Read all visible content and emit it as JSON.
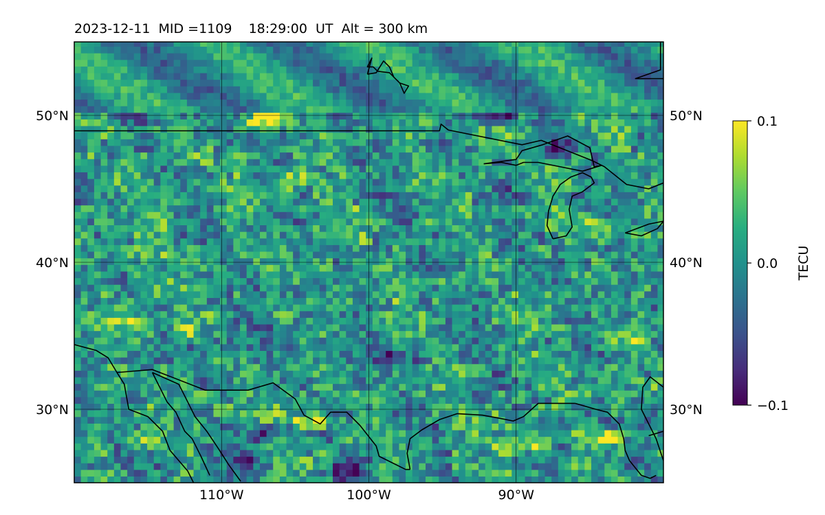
{
  "chart_data": {
    "type": "heatmap",
    "title": "2023-12-11  MID =1109    18:29:00  UT  Alt = 300 km",
    "map_extent": {
      "lon": [
        -120,
        -80
      ],
      "lat": [
        25,
        55
      ]
    },
    "x_ticks": [
      {
        "lon": -110,
        "label": "110°W"
      },
      {
        "lon": -100,
        "label": "100°W"
      },
      {
        "lon": -90,
        "label": "90°W"
      }
    ],
    "y_ticks": [
      {
        "lat": 50,
        "label": "50°N"
      },
      {
        "lat": 40,
        "label": "40°N"
      },
      {
        "lat": 30,
        "label": "30°N"
      }
    ],
    "grid": true,
    "colormap": "viridis",
    "colorbar": {
      "label": "TECU",
      "range": [
        -0.1,
        0.1
      ],
      "ticks": [
        {
          "value": 0.1,
          "label": "0.1"
        },
        {
          "value": 0.0,
          "label": "0.0"
        },
        {
          "value": -0.1,
          "label": "−0.1"
        }
      ],
      "placement": "right"
    },
    "hotspots_tecu": [
      {
        "lon": -107.5,
        "lat": 49.6,
        "value": 0.1
      },
      {
        "lon": -105.8,
        "lat": 50.1,
        "value": 0.08
      },
      {
        "lon": -104.8,
        "lat": 45.7,
        "value": 0.09
      },
      {
        "lon": -116.5,
        "lat": 36.0,
        "value": 0.1
      },
      {
        "lon": -112.5,
        "lat": 35.3,
        "value": 0.09
      },
      {
        "lon": -106.5,
        "lat": 29.7,
        "value": 0.1
      },
      {
        "lon": -104.0,
        "lat": 29.3,
        "value": 0.09
      },
      {
        "lon": -115.0,
        "lat": 28.0,
        "value": 0.09
      },
      {
        "lon": -89.0,
        "lat": 27.5,
        "value": 0.08
      },
      {
        "lon": -84.0,
        "lat": 28.0,
        "value": 0.09
      },
      {
        "lon": -85.0,
        "lat": 43.0,
        "value": 0.08
      },
      {
        "lon": -82.5,
        "lat": 34.5,
        "value": 0.07
      },
      {
        "lon": -91.0,
        "lat": 50.0,
        "value": -0.1
      },
      {
        "lon": -101.5,
        "lat": 25.8,
        "value": -0.1
      },
      {
        "lon": -107.0,
        "lat": 28.5,
        "value": -0.09
      },
      {
        "lon": -98.0,
        "lat": 33.5,
        "value": -0.08
      },
      {
        "lon": -108.5,
        "lat": 26.5,
        "value": -0.08
      },
      {
        "lon": -87.0,
        "lat": 48.0,
        "value": -0.08
      },
      {
        "lon": -90.5,
        "lat": 44.5,
        "value": -0.07
      }
    ],
    "coastlines_lonlat": [
      [
        [
          -120,
          48.95
        ],
        [
          -95.2,
          48.95
        ],
        [
          -95.1,
          49.4
        ],
        [
          -94.6,
          49.0
        ],
        [
          -89.6,
          48.0
        ],
        [
          -88.3,
          48.3
        ],
        [
          -84.8,
          46.9
        ],
        [
          -84.0,
          46.5
        ],
        [
          -83.5,
          46.1
        ],
        [
          -82.5,
          45.3
        ],
        [
          -81.0,
          45.0
        ],
        [
          -80,
          45.4
        ]
      ],
      [
        [
          -100.1,
          52.8
        ],
        [
          -99.5,
          52.9
        ],
        [
          -99.0,
          53.7
        ],
        [
          -98.6,
          53.3
        ],
        [
          -98.3,
          52.6
        ],
        [
          -97.9,
          52.2
        ],
        [
          -97.6,
          51.5
        ],
        [
          -97.3,
          52.0
        ],
        [
          -97.9,
          52.2
        ],
        [
          -98.6,
          52.9
        ],
        [
          -99.4,
          53.0
        ],
        [
          -99.7,
          53.3
        ],
        [
          -100.1,
          53.3
        ],
        [
          -99.8,
          53.9
        ],
        [
          -100.1,
          52.8
        ]
      ],
      [
        [
          -92.2,
          46.7
        ],
        [
          -90.0,
          47.0
        ],
        [
          -89.6,
          47.6
        ],
        [
          -88.2,
          48.0
        ],
        [
          -86.5,
          48.6
        ],
        [
          -85.0,
          47.8
        ],
        [
          -84.7,
          46.5
        ],
        [
          -84.2,
          46.6
        ],
        [
          -85.5,
          46.2
        ],
        [
          -87.0,
          46.5
        ],
        [
          -88.5,
          46.8
        ],
        [
          -89.5,
          46.8
        ],
        [
          -90.0,
          46.6
        ],
        [
          -91.0,
          46.8
        ],
        [
          -92.2,
          46.7
        ]
      ],
      [
        [
          -87.5,
          41.6
        ],
        [
          -87.9,
          42.5
        ],
        [
          -87.8,
          43.5
        ],
        [
          -87.5,
          44.5
        ],
        [
          -87.0,
          45.3
        ],
        [
          -86.3,
          45.8
        ],
        [
          -85.5,
          46.1
        ],
        [
          -84.9,
          45.8
        ],
        [
          -84.7,
          45.4
        ],
        [
          -85.5,
          44.8
        ],
        [
          -86.2,
          44.5
        ],
        [
          -86.4,
          43.6
        ],
        [
          -86.2,
          42.4
        ],
        [
          -86.6,
          41.8
        ],
        [
          -87.5,
          41.6
        ]
      ],
      [
        [
          -82.6,
          42.0
        ],
        [
          -81.0,
          42.6
        ],
        [
          -80.0,
          42.8
        ],
        [
          -80.4,
          42.3
        ],
        [
          -81.5,
          41.8
        ],
        [
          -82.6,
          42.0
        ]
      ],
      [
        [
          -80.0,
          31.5
        ],
        [
          -80.9,
          32.2
        ],
        [
          -81.4,
          31.5
        ],
        [
          -81.5,
          30.0
        ],
        [
          -81.0,
          29.0
        ],
        [
          -80.5,
          28.0
        ],
        [
          -80.0,
          26.5
        ]
      ],
      [
        [
          -80.0,
          28.5
        ],
        [
          -81.0,
          28.2
        ]
      ],
      [
        [
          -86.0,
          30.4
        ],
        [
          -84.6,
          30.0
        ],
        [
          -83.8,
          29.8
        ],
        [
          -83.0,
          29.0
        ],
        [
          -82.7,
          28.0
        ],
        [
          -82.6,
          27.2
        ],
        [
          -82.3,
          26.5
        ],
        [
          -81.5,
          25.5
        ],
        [
          -80.9,
          25.3
        ],
        [
          -80.5,
          25.5
        ]
      ],
      [
        [
          -97.2,
          25.9
        ],
        [
          -97.4,
          27.0
        ],
        [
          -97.2,
          28.0
        ],
        [
          -96.4,
          28.6
        ],
        [
          -95.2,
          29.3
        ],
        [
          -94.0,
          29.7
        ],
        [
          -92.3,
          29.6
        ],
        [
          -91.2,
          29.4
        ],
        [
          -90.2,
          29.2
        ],
        [
          -89.5,
          29.5
        ],
        [
          -88.5,
          30.4
        ],
        [
          -87.5,
          30.4
        ],
        [
          -86.5,
          30.4
        ],
        [
          -86.0,
          30.4
        ]
      ],
      [
        [
          -117.1,
          32.5
        ],
        [
          -114.7,
          32.7
        ],
        [
          -111.1,
          31.3
        ],
        [
          -108.2,
          31.3
        ],
        [
          -106.5,
          31.8
        ],
        [
          -105.0,
          30.7
        ],
        [
          -104.4,
          29.6
        ],
        [
          -103.3,
          29.0
        ],
        [
          -102.6,
          29.8
        ],
        [
          -101.5,
          29.8
        ],
        [
          -100.6,
          28.9
        ],
        [
          -99.5,
          27.5
        ],
        [
          -99.3,
          26.8
        ],
        [
          -97.5,
          25.9
        ],
        [
          -97.2,
          25.9
        ]
      ],
      [
        [
          -120,
          34.4
        ],
        [
          -118.5,
          34.0
        ],
        [
          -117.7,
          33.5
        ],
        [
          -117.1,
          32.5
        ],
        [
          -116.6,
          31.7
        ],
        [
          -116.3,
          30.0
        ],
        [
          -115.0,
          29.5
        ],
        [
          -114.0,
          28.5
        ],
        [
          -113.5,
          27.2
        ],
        [
          -112.3,
          25.8
        ],
        [
          -111.9,
          25.0
        ]
      ],
      [
        [
          -114.7,
          32.5
        ],
        [
          -114.2,
          31.5
        ],
        [
          -113.7,
          30.5
        ],
        [
          -113.1,
          29.8
        ],
        [
          -112.5,
          28.5
        ],
        [
          -112.0,
          28.0
        ],
        [
          -111.4,
          26.8
        ],
        [
          -110.8,
          25.5
        ]
      ],
      [
        [
          -114.7,
          32.5
        ],
        [
          -112.9,
          31.7
        ],
        [
          -112.5,
          30.9
        ],
        [
          -111.8,
          29.5
        ],
        [
          -111.0,
          28.5
        ],
        [
          -110.2,
          27.3
        ],
        [
          -109.5,
          26.2
        ],
        [
          -108.7,
          25.1
        ]
      ],
      [
        [
          -80.2,
          55
        ],
        [
          -80.2,
          53.1
        ],
        [
          -81.9,
          52.5
        ],
        [
          -80,
          52.5
        ]
      ]
    ]
  }
}
